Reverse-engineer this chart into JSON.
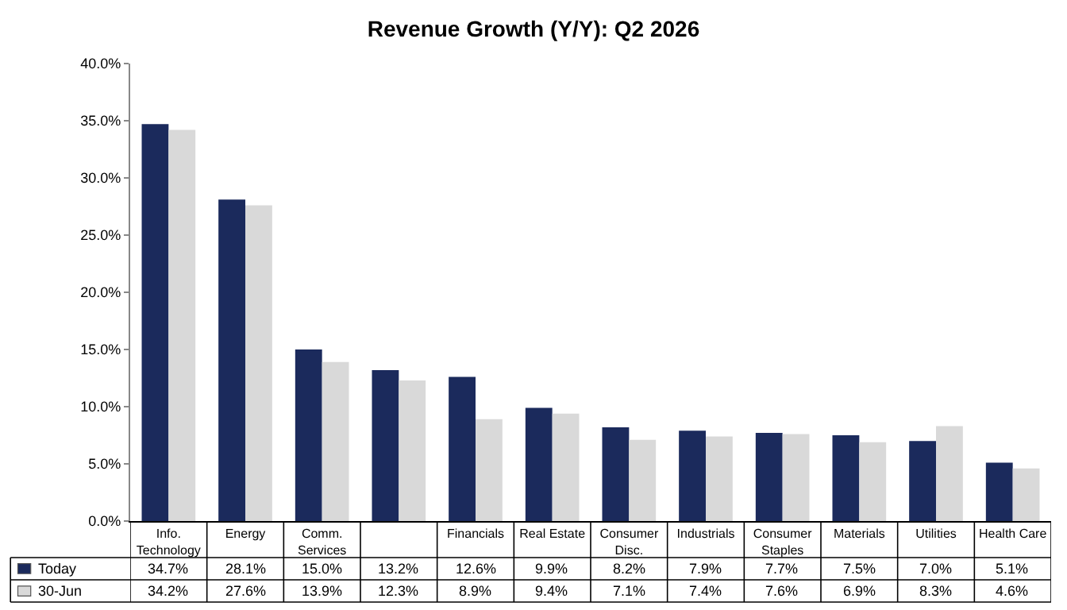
{
  "chart_data": {
    "type": "bar",
    "title": "Revenue Growth (Y/Y): Q2 2026",
    "categories": [
      "Info. Technology",
      "Energy",
      "Comm. Services",
      null,
      "Financials",
      "Real Estate",
      "Consumer Disc.",
      "Industrials",
      "Consumer Staples",
      "Materials",
      "Utilities",
      "Health Care"
    ],
    "series": [
      {
        "name": "Today",
        "color": "#1b2a5c",
        "values": [
          34.7,
          28.1,
          15.0,
          13.2,
          12.6,
          9.9,
          8.2,
          7.9,
          7.7,
          7.5,
          7.0,
          5.1
        ],
        "value_labels": [
          "34.7%",
          "28.1%",
          "15.0%",
          "13.2%",
          "12.6%",
          "9.9%",
          "8.2%",
          "7.9%",
          "7.7%",
          "7.5%",
          "7.0%",
          "5.1%"
        ]
      },
      {
        "name": "30-Jun",
        "color": "#d9d9d9",
        "values": [
          34.2,
          27.6,
          13.9,
          12.3,
          8.9,
          9.4,
          7.1,
          7.4,
          7.6,
          6.9,
          8.3,
          4.6
        ],
        "value_labels": [
          "34.2%",
          "27.6%",
          "13.9%",
          "12.3%",
          "8.9%",
          "9.4%",
          "7.1%",
          "7.4%",
          "7.6%",
          "6.9%",
          "8.3%",
          "4.6%"
        ]
      }
    ],
    "ylim": [
      0,
      40
    ],
    "yticks": [
      {
        "value": 0,
        "label": "0.0%"
      },
      {
        "value": 5,
        "label": "5.0%"
      },
      {
        "value": 10,
        "label": "10.0%"
      },
      {
        "value": 15,
        "label": "15.0%"
      },
      {
        "value": 20,
        "label": "20.0%"
      },
      {
        "value": 25,
        "label": "25.0%"
      },
      {
        "value": 30,
        "label": "30.0%"
      },
      {
        "value": 35,
        "label": "35.0%"
      },
      {
        "value": 40,
        "label": "40.0%"
      }
    ],
    "grid": false,
    "legend": "bottom"
  }
}
